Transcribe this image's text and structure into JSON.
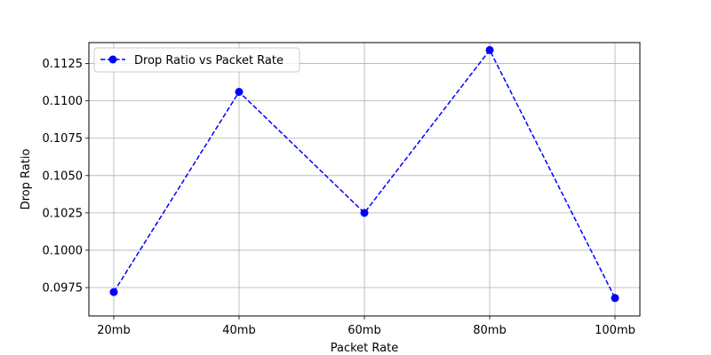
{
  "chart_data": {
    "type": "line",
    "title": "",
    "xlabel": "Packet Rate",
    "ylabel": "Drop Ratio",
    "categories": [
      "20mb",
      "40mb",
      "60mb",
      "80mb",
      "100mb"
    ],
    "series": [
      {
        "name": "Drop Ratio vs Packet Rate",
        "values": [
          0.0972,
          0.1106,
          0.1025,
          0.1134,
          0.0968
        ],
        "color": "#0000ff",
        "line_style": "dashed",
        "marker": "circle"
      }
    ],
    "ylim": [
      0.0956,
      0.1139
    ],
    "yticks": [
      "0.0975",
      "0.1000",
      "0.1025",
      "0.1050",
      "0.1075",
      "0.1100",
      "0.1125"
    ],
    "grid": true,
    "legend_position": "top-left"
  }
}
